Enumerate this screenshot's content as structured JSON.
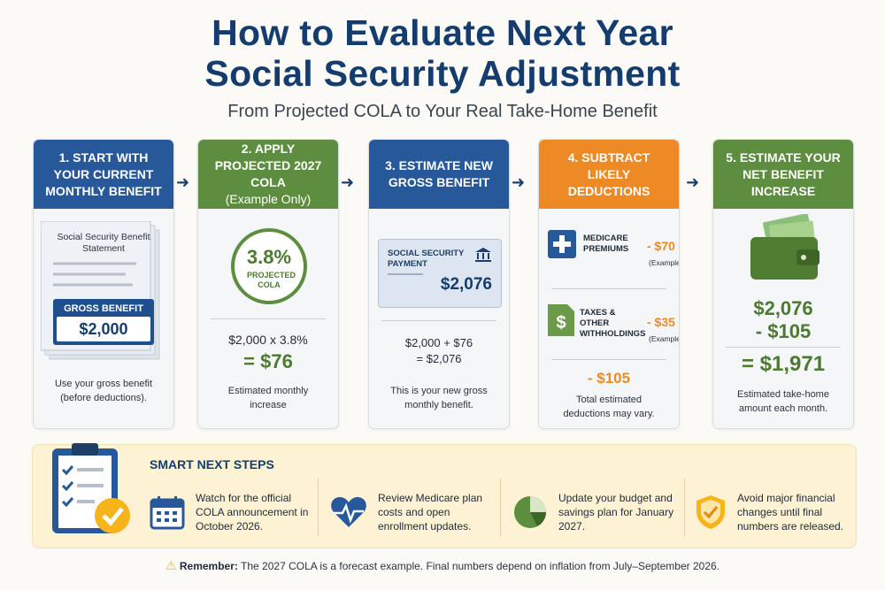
{
  "title_line1": "How to Evaluate Next Year",
  "title_line2": "Social Security Adjustment",
  "subtitle": "From Projected COLA to Your Real Take-Home Benefit",
  "colors": {
    "blue": "#27599a",
    "green": "#5d8d3f",
    "orange": "#ee8a25",
    "navy": "#143d6e"
  },
  "cards": [
    {
      "head": "1. START WITH YOUR CURRENT MONTHLY BENEFIT",
      "doc_title": "Social Security Benefit Statement",
      "badge_label": "GROSS BENEFIT",
      "badge_value": "$2,000",
      "note": "Use your gross benefit (before deductions)."
    },
    {
      "head": "2. APPLY PROJECTED 2027 COLA",
      "head_sub": "(Example Only)",
      "rate": "3.8%",
      "rate_label": "PROJECTED COLA",
      "calc": "$2,000 x 3.8%",
      "result": "= $76",
      "note": "Estimated monthly increase"
    },
    {
      "head": "3. ESTIMATE NEW GROSS BENEFIT",
      "payment_label": "SOCIAL SECURITY PAYMENT",
      "payment_value": "$2,076",
      "calc": "$2,000 + $76",
      "result": "= $2,076",
      "note": "This is your new gross monthly benefit."
    },
    {
      "head": "4. SUBTRACT LIKELY DEDUCTIONS",
      "item1_label": "MEDICARE PREMIUMS",
      "item1_value": "- $70",
      "item1_note": "(Example)",
      "item2_label": "TAXES & OTHER WITHHOLDINGS",
      "item2_value": "- $35",
      "item2_note": "(Example)",
      "total": "- $105",
      "note": "Total estimated deductions may vary."
    },
    {
      "head": "5. ESTIMATE YOUR NET BENEFIT INCREASE",
      "line1": "$2,076",
      "line2": "- $105",
      "result": "= $1,971",
      "note": "Estimated take-home amount each month."
    }
  ],
  "steps": {
    "title": "SMART NEXT STEPS",
    "items": [
      {
        "icon": "calendar-icon",
        "text": "Watch for the official COLA announcement in October 2026."
      },
      {
        "icon": "heart-pulse-icon",
        "text": "Review Medicare plan costs and open enrollment updates."
      },
      {
        "icon": "pie-chart-icon",
        "text": "Update your budget and savings plan for January 2027."
      },
      {
        "icon": "shield-check-icon",
        "text": "Avoid major financial changes until final numbers are released."
      }
    ]
  },
  "remember_label": "Remember:",
  "remember_text": "The 2027 COLA is a forecast example. Final numbers depend on inflation from July–September 2026."
}
